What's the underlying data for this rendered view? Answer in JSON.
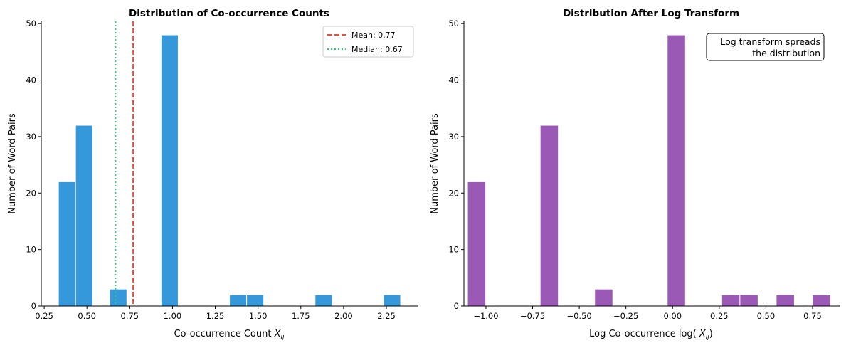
{
  "chart_data": [
    {
      "type": "bar",
      "subtype": "histogram",
      "title": "Distribution of Co-occurrence Counts",
      "xlabel": "Co-occurrence Count",
      "xlabel_math": "X",
      "xlabel_sub": "ij",
      "ylabel": "Number of Word Pairs",
      "bin_start": 0.3333,
      "bin_width": 0.1,
      "counts": [
        22,
        32,
        0,
        3,
        0,
        0,
        48,
        0,
        0,
        0,
        2,
        2,
        0,
        0,
        0,
        2,
        0,
        0,
        0,
        2
      ],
      "xlim": [
        0.233,
        2.433
      ],
      "ylim": [
        0,
        50.4
      ],
      "xticks": [
        0.25,
        0.5,
        0.75,
        1.0,
        1.25,
        1.5,
        1.75,
        2.0,
        2.25
      ],
      "xtick_labels": [
        "0.25",
        "0.50",
        "0.75",
        "1.00",
        "1.25",
        "1.50",
        "1.75",
        "2.00",
        "2.25"
      ],
      "yticks": [
        0,
        10,
        20,
        30,
        40,
        50
      ],
      "ytick_labels": [
        "0",
        "10",
        "20",
        "30",
        "40",
        "50"
      ],
      "bar_color": "#3498db",
      "lines": [
        {
          "name": "Mean: 0.77",
          "x": 0.77,
          "color": "#e74c3c",
          "style": "dashed"
        },
        {
          "name": "Median: 0.67",
          "x": 0.667,
          "color": "#2ecc71",
          "style": "dotted"
        }
      ],
      "legend": "top-right",
      "grid": false
    },
    {
      "type": "bar",
      "subtype": "histogram",
      "title": "Distribution After Log Transform",
      "xlabel": "Log Co-occurrence log(",
      "xlabel_math": "X",
      "xlabel_sub": "ij",
      "xlabel_end": ")",
      "ylabel": "Number of Word Pairs",
      "bin_start": -1.0986,
      "bin_width": 0.09729,
      "counts": [
        22,
        0,
        0,
        0,
        32,
        0,
        0,
        3,
        0,
        0,
        0,
        48,
        0,
        0,
        2,
        2,
        0,
        2,
        0,
        2
      ],
      "xlim": [
        -1.118,
        0.895
      ],
      "ylim": [
        0,
        50.4
      ],
      "xticks": [
        -1.0,
        -0.75,
        -0.5,
        -0.25,
        0.0,
        0.25,
        0.5,
        0.75
      ],
      "xtick_labels": [
        "−1.00",
        "−0.75",
        "−0.50",
        "−0.25",
        "0.00",
        "0.25",
        "0.50",
        "0.75"
      ],
      "yticks": [
        0,
        10,
        20,
        30,
        40,
        50
      ],
      "ytick_labels": [
        "0",
        "10",
        "20",
        "30",
        "40",
        "50"
      ],
      "bar_color": "#9b59b6",
      "annotation": [
        "Log transform spreads",
        "the distribution"
      ],
      "grid": false
    }
  ]
}
